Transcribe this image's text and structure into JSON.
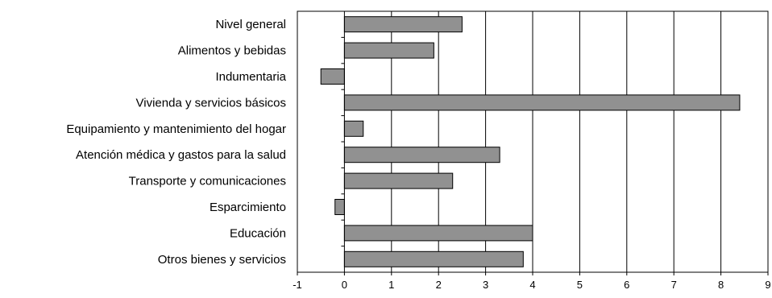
{
  "chart_data": {
    "type": "bar",
    "orientation": "horizontal",
    "categories": [
      "Nivel general",
      "Alimentos y bebidas",
      "Indumentaria",
      "Vivienda y servicios básicos",
      "Equipamiento y mantenimiento del hogar",
      "Atención médica y gastos para la salud",
      "Transporte y comunicaciones",
      "Esparcimiento",
      "Educación",
      "Otros bienes y servicios"
    ],
    "values": [
      2.5,
      1.9,
      -0.5,
      8.4,
      0.4,
      3.3,
      2.3,
      -0.2,
      4.0,
      3.8
    ],
    "xlim": [
      -1,
      9
    ],
    "xticks": [
      "-1",
      "0",
      "1",
      "2",
      "3",
      "4",
      "5",
      "6",
      "7",
      "8",
      "9"
    ],
    "grid": "vertical",
    "title": "",
    "xlabel": "",
    "ylabel": "",
    "legend": "none",
    "colors": {
      "bar": "#919191",
      "bar_stroke": "#000000",
      "grid": "#000000"
    }
  }
}
